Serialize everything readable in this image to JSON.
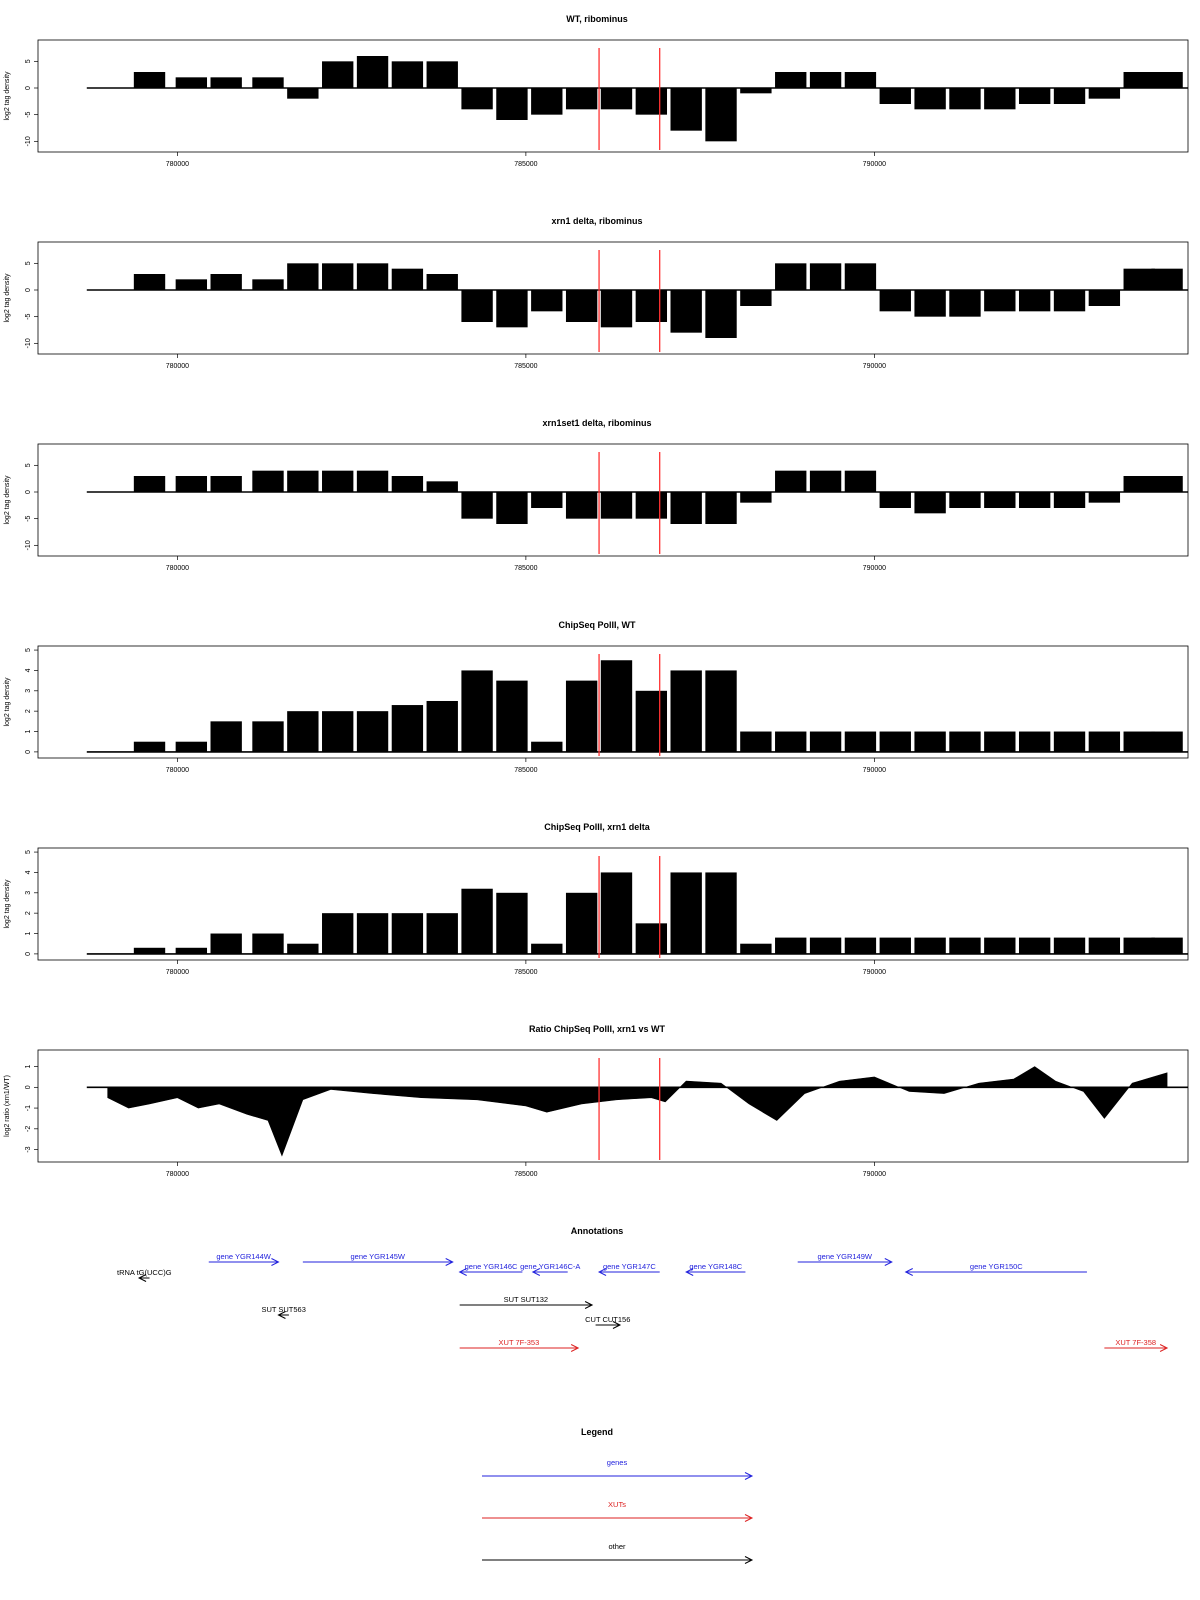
{
  "chart_data": [
    {
      "type": "bar",
      "title": "WT, ribominus",
      "xlabel": "",
      "ylabel": "log2 tag density",
      "xlim": [
        778000,
        794500
      ],
      "ylim": [
        -12,
        9
      ],
      "xticks": [
        "780000",
        "785000",
        "790000"
      ],
      "yticks": [
        "-10",
        "-5",
        "0",
        "5"
      ],
      "markers_x": [
        786050,
        786920
      ],
      "x": [
        779600,
        780200,
        780700,
        781300,
        781800,
        782300,
        782800,
        783300,
        783800,
        784300,
        784800,
        785300,
        785800,
        786300,
        786800,
        787300,
        787800,
        788300,
        788800,
        789300,
        789800,
        790300,
        790800,
        791300,
        791800,
        792300,
        792800,
        793300,
        793800,
        794200
      ],
      "values": [
        3,
        2,
        2,
        2,
        -2,
        5,
        6,
        5,
        5,
        -4,
        -6,
        -5,
        -4,
        -4,
        -5,
        -8,
        -10,
        -1,
        3,
        3,
        3,
        -3,
        -4,
        -4,
        -4,
        -3,
        -3,
        -2,
        3,
        3
      ]
    },
    {
      "type": "bar",
      "title": "xrn1 delta, ribominus",
      "xlabel": "",
      "ylabel": "log2 tag density",
      "xlim": [
        778000,
        794500
      ],
      "ylim": [
        -12,
        9
      ],
      "xticks": [
        "780000",
        "785000",
        "790000"
      ],
      "yticks": [
        "-10",
        "-5",
        "0",
        "5"
      ],
      "markers_x": [
        786050,
        786920
      ],
      "x": [
        779600,
        780200,
        780700,
        781300,
        781800,
        782300,
        782800,
        783300,
        783800,
        784300,
        784800,
        785300,
        785800,
        786300,
        786800,
        787300,
        787800,
        788300,
        788800,
        789300,
        789800,
        790300,
        790800,
        791300,
        791800,
        792300,
        792800,
        793300,
        793800,
        794200
      ],
      "values": [
        3,
        2,
        3,
        2,
        5,
        5,
        5,
        4,
        3,
        -6,
        -7,
        -4,
        -6,
        -7,
        -6,
        -8,
        -9,
        -3,
        5,
        5,
        5,
        -4,
        -5,
        -5,
        -4,
        -4,
        -4,
        -3,
        4,
        4
      ]
    },
    {
      "type": "bar",
      "title": "xrn1set1 delta, ribominus",
      "xlabel": "",
      "ylabel": "log2 tag density",
      "xlim": [
        778000,
        794500
      ],
      "ylim": [
        -12,
        9
      ],
      "xticks": [
        "780000",
        "785000",
        "790000"
      ],
      "yticks": [
        "-10",
        "-5",
        "0",
        "5"
      ],
      "markers_x": [
        786050,
        786920
      ],
      "x": [
        779600,
        780200,
        780700,
        781300,
        781800,
        782300,
        782800,
        783300,
        783800,
        784300,
        784800,
        785300,
        785800,
        786300,
        786800,
        787300,
        787800,
        788300,
        788800,
        789300,
        789800,
        790300,
        790800,
        791300,
        791800,
        792300,
        792800,
        793300,
        793800,
        794200
      ],
      "values": [
        3,
        3,
        3,
        4,
        4,
        4,
        4,
        3,
        2,
        -5,
        -6,
        -3,
        -5,
        -5,
        -5,
        -6,
        -6,
        -2,
        4,
        4,
        4,
        -3,
        -4,
        -3,
        -3,
        -3,
        -3,
        -2,
        3,
        3
      ]
    },
    {
      "type": "bar",
      "title": "ChipSeq PolII, WT",
      "xlabel": "",
      "ylabel": "log2 tag density",
      "xlim": [
        778000,
        794500
      ],
      "ylim": [
        -0.3,
        5.2
      ],
      "xticks": [
        "780000",
        "785000",
        "790000"
      ],
      "yticks": [
        "0",
        "1",
        "2",
        "3",
        "4",
        "5"
      ],
      "markers_x": [
        786050,
        786920
      ],
      "x": [
        779600,
        780200,
        780700,
        781300,
        781800,
        782300,
        782800,
        783300,
        783800,
        784300,
        784800,
        785300,
        785800,
        786300,
        786800,
        787300,
        787800,
        788300,
        788800,
        789300,
        789800,
        790300,
        790800,
        791300,
        791800,
        792300,
        792800,
        793300,
        793800,
        794200
      ],
      "values": [
        0.5,
        0.5,
        1.5,
        1.5,
        2,
        2,
        2,
        2.3,
        2.5,
        4,
        3.5,
        0.5,
        3.5,
        4.5,
        3,
        4,
        4,
        1,
        1,
        1,
        1,
        1,
        1,
        1,
        1,
        1,
        1,
        1,
        1,
        1
      ]
    },
    {
      "type": "bar",
      "title": "ChipSeq PolII, xrn1 delta",
      "xlabel": "",
      "ylabel": "log2 tag density",
      "xlim": [
        778000,
        794500
      ],
      "ylim": [
        -0.3,
        5.2
      ],
      "xticks": [
        "780000",
        "785000",
        "790000"
      ],
      "yticks": [
        "0",
        "1",
        "2",
        "3",
        "4",
        "5"
      ],
      "markers_x": [
        786050,
        786920
      ],
      "x": [
        779600,
        780200,
        780700,
        781300,
        781800,
        782300,
        782800,
        783300,
        783800,
        784300,
        784800,
        785300,
        785800,
        786300,
        786800,
        787300,
        787800,
        788300,
        788800,
        789300,
        789800,
        790300,
        790800,
        791300,
        791800,
        792300,
        792800,
        793300,
        793800,
        794200
      ],
      "values": [
        0.3,
        0.3,
        1,
        1,
        0.5,
        2,
        2,
        2,
        2,
        3.2,
        3,
        0.5,
        3,
        4,
        1.5,
        4,
        4,
        0.5,
        0.8,
        0.8,
        0.8,
        0.8,
        0.8,
        0.8,
        0.8,
        0.8,
        0.8,
        0.8,
        0.8,
        0.8
      ]
    },
    {
      "type": "area",
      "title": "Ratio ChipSeq PolII, xrn1 vs WT",
      "xlabel": "",
      "ylabel": "log2 ratio (xrn1/WT)",
      "xlim": [
        778000,
        794500
      ],
      "ylim": [
        -3.6,
        1.8
      ],
      "xticks": [
        "780000",
        "785000",
        "790000"
      ],
      "yticks": [
        "-3",
        "-2",
        "-1",
        "0",
        "1"
      ],
      "markers_x": [
        786050,
        786920
      ],
      "x": [
        779000,
        779300,
        779600,
        780000,
        780300,
        780600,
        781000,
        781300,
        781500,
        781800,
        782200,
        782800,
        783500,
        784300,
        785000,
        785300,
        785800,
        786300,
        786800,
        787000,
        787300,
        787800,
        788200,
        788600,
        789000,
        789500,
        790000,
        790500,
        791000,
        791500,
        792000,
        792300,
        792600,
        793000,
        793300,
        793700,
        794200
      ],
      "values": [
        -0.5,
        -1,
        -0.8,
        -0.5,
        -1,
        -0.8,
        -1.3,
        -1.6,
        -3.3,
        -0.6,
        -0.1,
        -0.3,
        -0.5,
        -0.6,
        -0.9,
        -1.2,
        -0.8,
        -0.6,
        -0.5,
        -0.7,
        0.3,
        0.2,
        -0.8,
        -1.6,
        -0.3,
        0.3,
        0.5,
        -0.2,
        -0.3,
        0.2,
        0.4,
        1,
        0.3,
        -0.2,
        -1.5,
        0.2,
        0.7
      ]
    }
  ],
  "annotations": {
    "title": "Annotations",
    "items": [
      {
        "label": "gene YGR144W",
        "start": 780450,
        "end": 781450,
        "dir": "right",
        "row": 0,
        "color": "#2222dd"
      },
      {
        "label": "gene YGR145W",
        "start": 781800,
        "end": 783950,
        "dir": "right",
        "row": 0,
        "color": "#2222dd"
      },
      {
        "label": "gene YGR146C",
        "start": 784050,
        "end": 784950,
        "dir": "left",
        "row": 1,
        "color": "#2222dd"
      },
      {
        "label": "gene YGR146C-A",
        "start": 785100,
        "end": 785600,
        "dir": "left",
        "row": 1,
        "color": "#2222dd"
      },
      {
        "label": "gene YGR147C",
        "start": 786050,
        "end": 786920,
        "dir": "left",
        "row": 1,
        "color": "#2222dd"
      },
      {
        "label": "gene YGR148C",
        "start": 787300,
        "end": 788150,
        "dir": "left",
        "row": 1,
        "color": "#2222dd"
      },
      {
        "label": "gene YGR149W",
        "start": 788900,
        "end": 790250,
        "dir": "right",
        "row": 0,
        "color": "#2222dd"
      },
      {
        "label": "gene YGR150C",
        "start": 790450,
        "end": 793050,
        "dir": "left",
        "row": 1,
        "color": "#2222dd"
      },
      {
        "label": "tRNA tG(UCC)G",
        "start": 779450,
        "end": 779600,
        "dir": "left",
        "row": 2,
        "color": "#000000"
      },
      {
        "label": "SUT SUT563",
        "start": 781450,
        "end": 781600,
        "dir": "left",
        "row": 4,
        "color": "#000000"
      },
      {
        "label": "SUT SUT132",
        "start": 784050,
        "end": 785950,
        "dir": "right",
        "row": 3,
        "color": "#000000"
      },
      {
        "label": "CUT CUT156",
        "start": 786000,
        "end": 786350,
        "dir": "right",
        "row": 5,
        "color": "#000000"
      },
      {
        "label": "XUT 7F-353",
        "start": 784050,
        "end": 785750,
        "dir": "right",
        "row": 6,
        "color": "#dd2222"
      },
      {
        "label": "XUT 7F-358",
        "start": 793300,
        "end": 794200,
        "dir": "right",
        "row": 6,
        "color": "#dd2222"
      }
    ]
  },
  "legend": {
    "title": "Legend",
    "entries": [
      {
        "label": "genes",
        "color": "#2222dd"
      },
      {
        "label": "XUTs",
        "color": "#dd2222"
      },
      {
        "label": "other",
        "color": "#000000"
      }
    ]
  }
}
